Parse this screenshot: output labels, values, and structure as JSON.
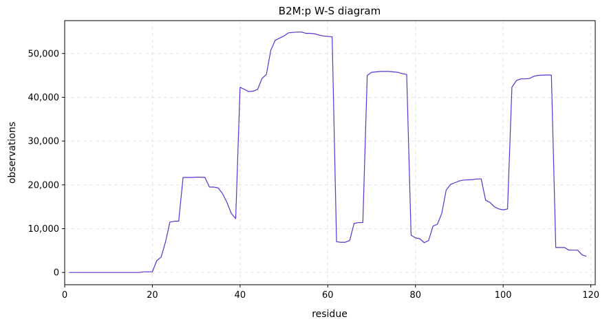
{
  "chart_data": {
    "type": "line",
    "title": "B2M:p W-S diagram",
    "xlabel": "residue",
    "ylabel": "observations",
    "xlim": [
      0,
      121
    ],
    "ylim": [
      -2800,
      57500
    ],
    "xticks": [
      0,
      20,
      40,
      60,
      80,
      100,
      120
    ],
    "xtick_labels": [
      "0",
      "20",
      "40",
      "60",
      "80",
      "100",
      "120"
    ],
    "yticks": [
      0,
      10000,
      20000,
      30000,
      40000,
      50000
    ],
    "ytick_labels": [
      "0",
      "10,000",
      "20,000",
      "30,000",
      "40,000",
      "50,000"
    ],
    "grid": true,
    "line_color": "#5b2fd0",
    "series": [
      {
        "x": [
          1,
          2,
          3,
          4,
          5,
          6,
          7,
          8,
          9,
          10,
          11,
          12,
          13,
          14,
          15,
          16,
          17,
          18,
          19,
          20,
          21,
          22,
          23,
          24,
          25,
          26,
          27,
          28,
          29,
          30,
          31,
          32,
          33,
          34,
          35,
          36,
          37,
          38,
          39,
          40,
          41,
          42,
          43,
          44,
          45,
          46,
          47,
          48,
          49,
          50,
          51,
          52,
          53,
          54,
          55,
          56,
          57,
          58,
          59,
          60,
          61,
          62,
          63,
          64,
          65,
          66,
          67,
          68,
          69,
          70,
          71,
          72,
          73,
          74,
          75,
          76,
          77,
          78,
          79,
          80,
          81,
          82,
          83,
          84,
          85,
          86,
          87,
          88,
          89,
          90,
          91,
          92,
          93,
          94,
          95,
          96,
          97,
          98,
          99,
          100,
          101,
          102,
          103,
          104,
          105,
          106,
          107,
          108,
          109,
          110,
          111,
          112,
          113,
          114,
          115,
          116,
          117,
          118,
          119
        ],
        "y": [
          0,
          0,
          0,
          0,
          0,
          0,
          0,
          0,
          0,
          0,
          0,
          0,
          0,
          0,
          0,
          0,
          0,
          150,
          150,
          150,
          2700,
          3500,
          7000,
          11500,
          11700,
          11700,
          21700,
          21700,
          21700,
          21750,
          21750,
          21700,
          19500,
          19500,
          19300,
          18000,
          16000,
          13500,
          12300,
          42300,
          41800,
          41300,
          41400,
          41800,
          44300,
          45200,
          50700,
          53000,
          53500,
          54000,
          54700,
          54800,
          54900,
          54900,
          54600,
          54600,
          54500,
          54200,
          54000,
          53900,
          53800,
          7000,
          6900,
          6900,
          7300,
          11200,
          11400,
          11400,
          45000,
          45700,
          45800,
          45900,
          45900,
          45900,
          45800,
          45700,
          45400,
          45200,
          8500,
          7900,
          7700,
          6800,
          7300,
          10600,
          11000,
          13500,
          18800,
          20100,
          20500,
          20900,
          21100,
          21150,
          21200,
          21350,
          21350,
          16500,
          16000,
          15000,
          14500,
          14300,
          14500,
          42300,
          43800,
          44200,
          44200,
          44300,
          44800,
          45000,
          45050,
          45100,
          45050,
          5700,
          5700,
          5700,
          5100,
          5100,
          5100,
          4000,
          3700
        ]
      }
    ]
  }
}
